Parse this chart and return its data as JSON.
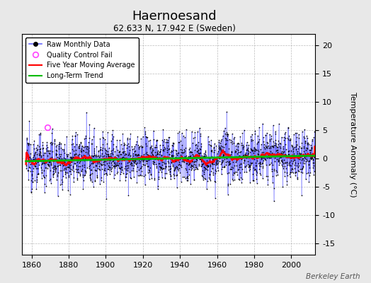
{
  "title": "Haernoesand",
  "subtitle": "62.633 N, 17.942 E (Sweden)",
  "ylabel": "Temperature Anomaly (°C)",
  "xlabel_years": [
    1860,
    1880,
    1900,
    1920,
    1940,
    1960,
    1980,
    2000
  ],
  "ylim": [
    -17,
    22
  ],
  "yticks": [
    -15,
    -10,
    -5,
    0,
    5,
    10,
    15,
    20
  ],
  "xlim": [
    1855,
    2013
  ],
  "background_color": "#e8e8e8",
  "plot_bg_color": "#ffffff",
  "raw_line_color": "#6666ff",
  "raw_marker_color": "#000000",
  "qc_fail_color": "#ff44ff",
  "moving_avg_color": "#ff0000",
  "trend_color": "#00bb00",
  "watermark": "Berkeley Earth",
  "seed": 12345,
  "start_year": 1857,
  "end_year": 2013,
  "noise_std": 3.0,
  "trend_slope": 0.005
}
